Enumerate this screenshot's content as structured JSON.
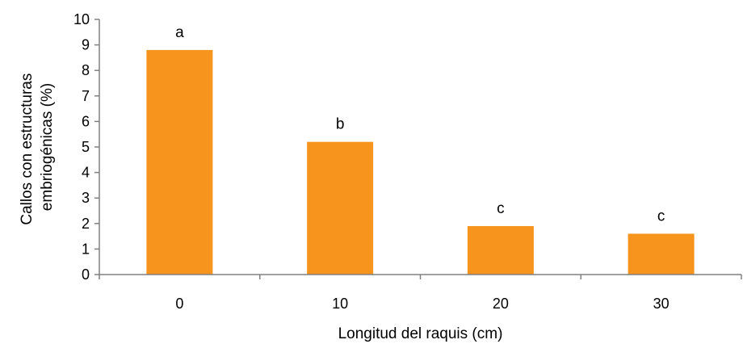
{
  "chart_data": {
    "type": "bar",
    "categories": [
      "0",
      "10",
      "20",
      "30"
    ],
    "values": [
      8.8,
      5.2,
      1.9,
      1.6
    ],
    "data_labels": [
      "a",
      "b",
      "c",
      "c"
    ],
    "title": "",
    "xlabel": "Longitud del raquis (cm)",
    "ylabel_lines": [
      "Callos con estructuras",
      "embriogénicas (%)"
    ],
    "ylim": [
      0,
      10
    ],
    "yticks": [
      "0",
      "1",
      "2",
      "3",
      "4",
      "5",
      "6",
      "7",
      "8",
      "9",
      "10"
    ],
    "grid": false,
    "legend": "none",
    "bar_color": "#f7941d"
  }
}
